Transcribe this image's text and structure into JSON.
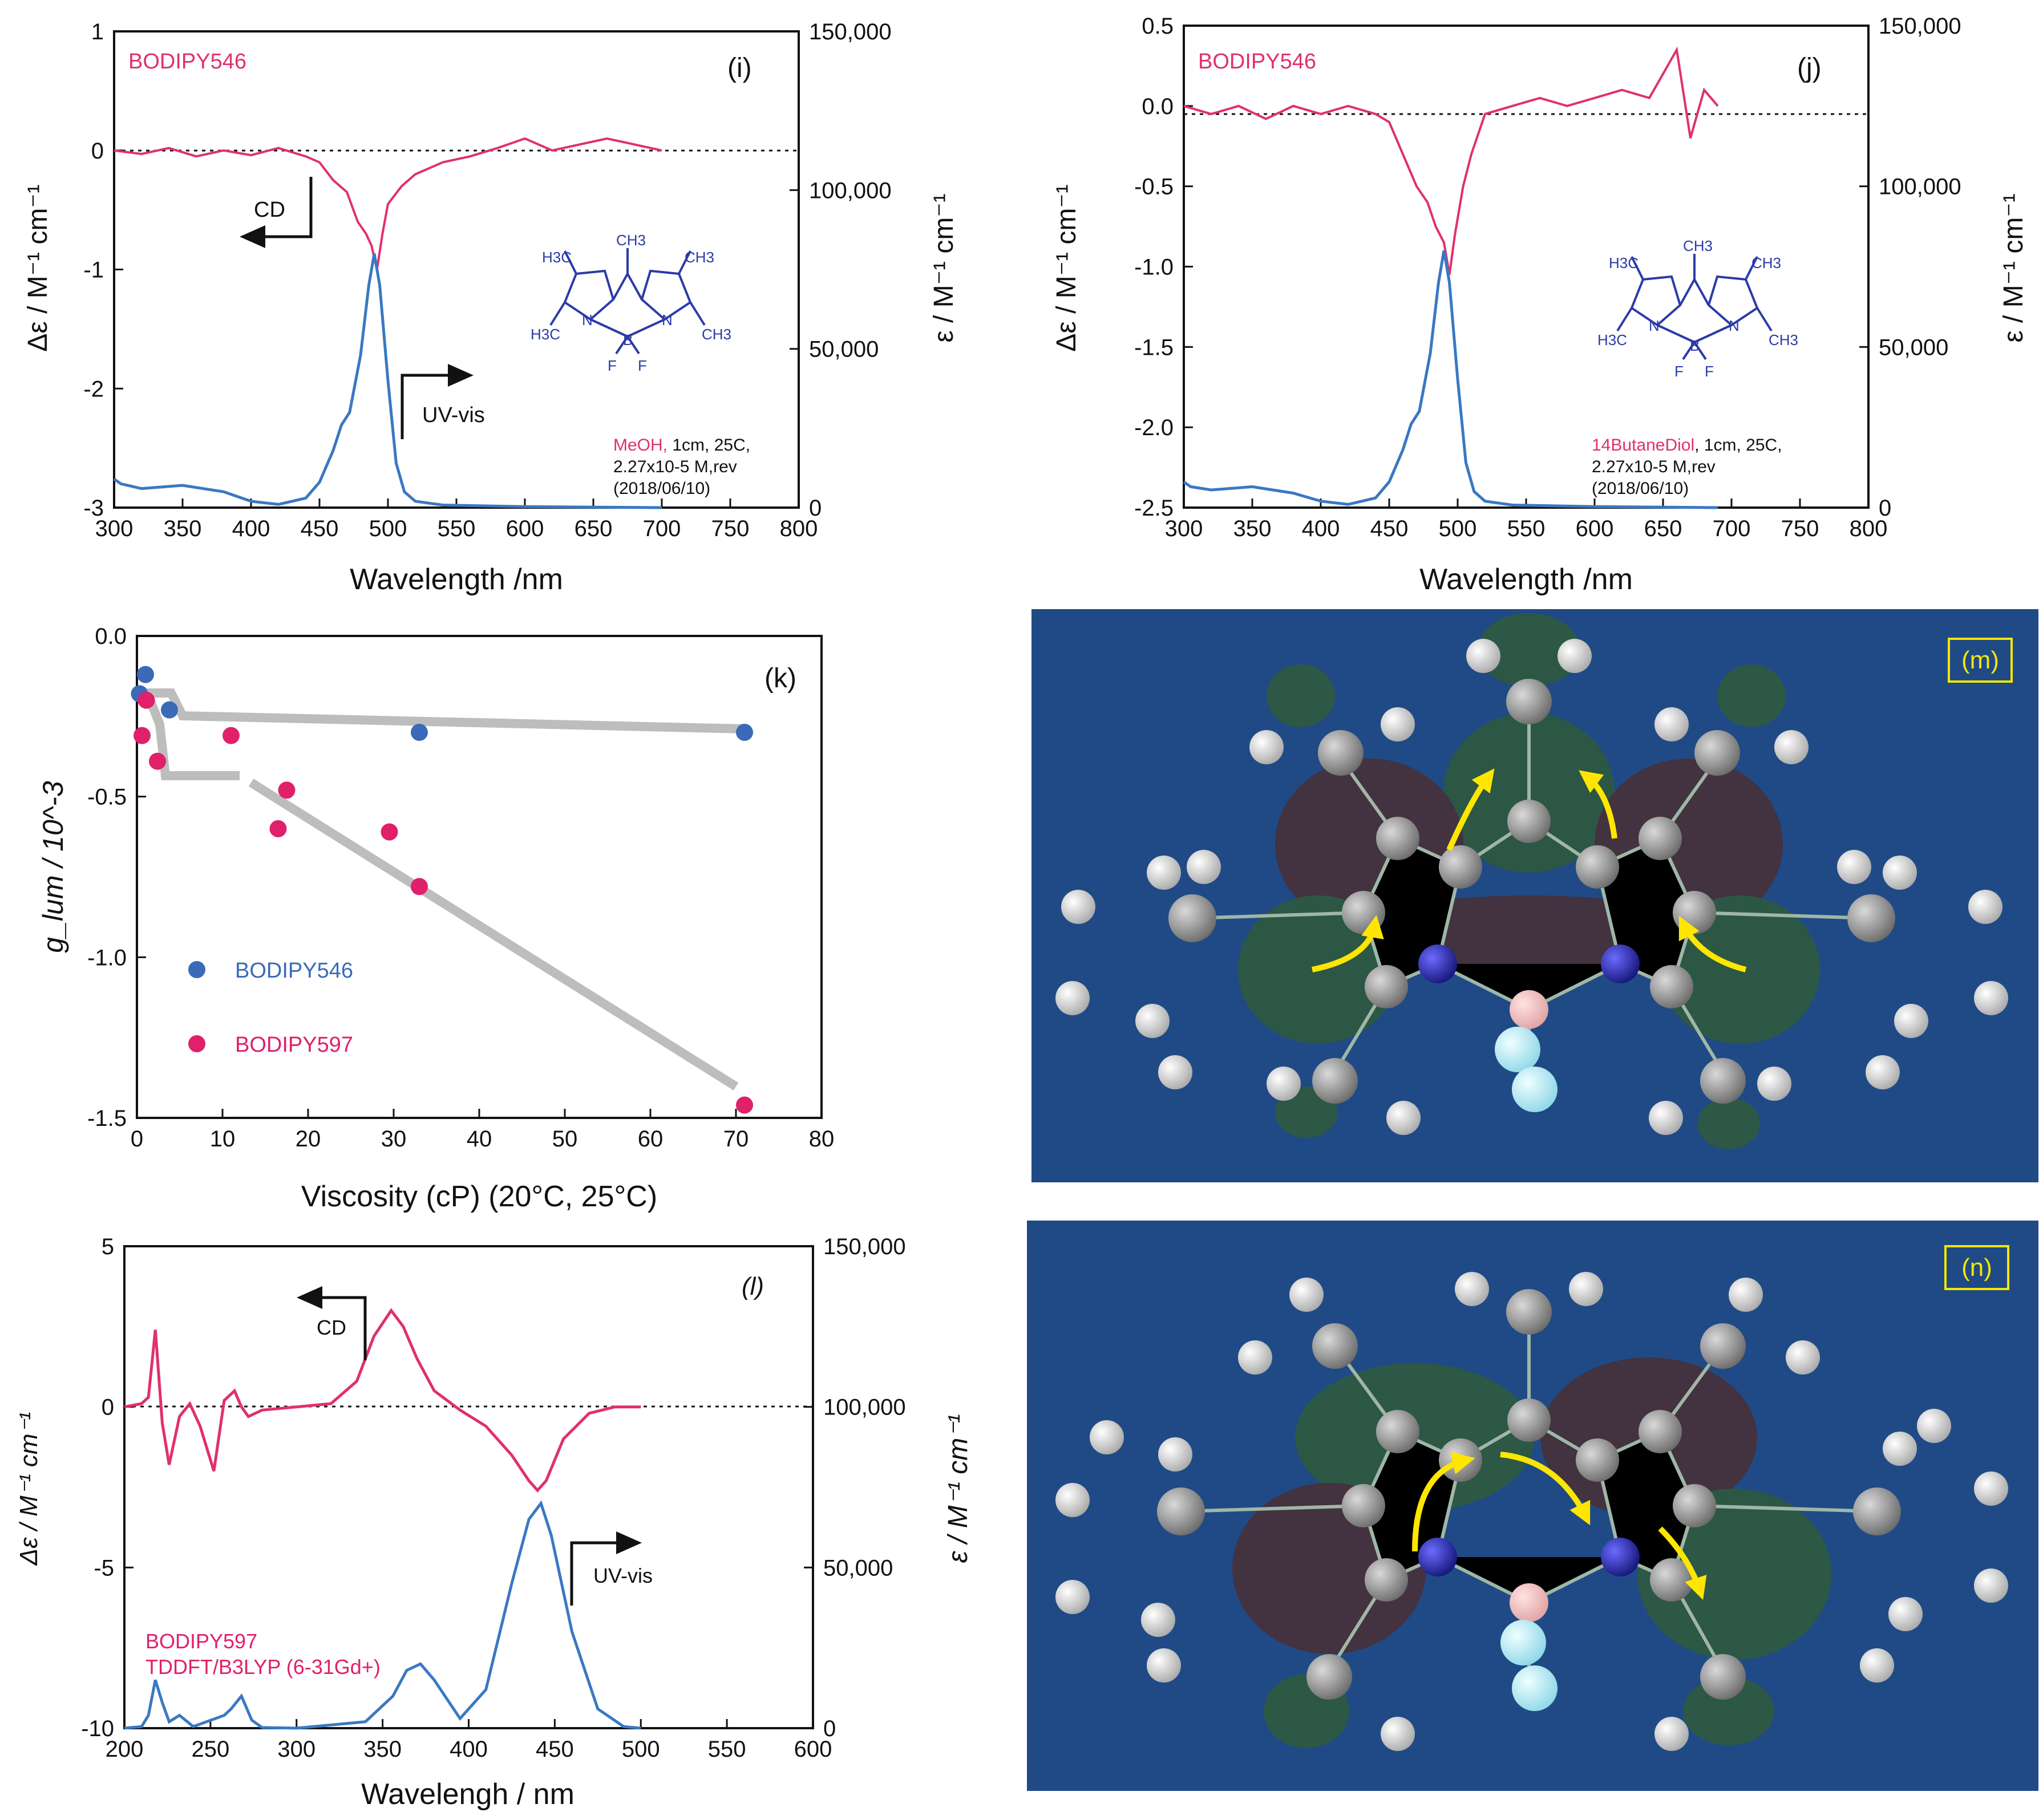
{
  "colors": {
    "cd": "#e0306e",
    "uv": "#3a78c2",
    "bodipy546": "#3a6ab8",
    "bodipy597": "#e0206a",
    "trend": "#bdbdbd",
    "orbital_bg": "#1f4a86",
    "label_box": "#f2e600"
  },
  "chart_data": [
    {
      "id": "i",
      "type": "line",
      "panel_label": "(i)",
      "sample": "BODIPY546",
      "xlabel": "Wavelength /nm",
      "ylabel_left": "Δε / M⁻¹ cm⁻¹",
      "ylabel_right": "ε / M⁻¹ cm⁻¹",
      "xlim": [
        300,
        800
      ],
      "ylim_left": [
        -3,
        1
      ],
      "ylim_right": [
        0,
        150000
      ],
      "xticks": [
        300,
        350,
        400,
        450,
        500,
        550,
        600,
        650,
        700,
        750,
        800
      ],
      "yticks_left": [
        -3,
        -2,
        -1,
        0,
        1
      ],
      "yticks_left_labels": [
        "-3",
        "-2",
        "-1",
        "0",
        "1"
      ],
      "yticks_right": [
        0,
        50000,
        100000,
        150000
      ],
      "yticks_right_labels": [
        "0",
        "50,000",
        "100,000",
        "150,000"
      ],
      "arrows": [
        "CD",
        "UV-vis"
      ],
      "condition_solvent": "MeOH,",
      "condition_lines": [
        "1cm, 25C,",
        "2.27x10-5 M,rev",
        "(2018/06/10)"
      ],
      "molecule_labels": [
        "H3C",
        "CH3",
        "CH3",
        "N",
        "B",
        "N",
        "H3C",
        "CH3",
        "F",
        "F"
      ],
      "series": [
        {
          "name": "CD",
          "axis": "left",
          "x": [
            300,
            320,
            340,
            360,
            380,
            400,
            420,
            440,
            450,
            460,
            470,
            478,
            484,
            488,
            492,
            496,
            500,
            510,
            520,
            540,
            560,
            580,
            600,
            620,
            640,
            660,
            680,
            700
          ],
          "y": [
            0,
            -0.03,
            0.02,
            -0.05,
            0,
            -0.04,
            0.02,
            -0.05,
            -0.1,
            -0.25,
            -0.35,
            -0.6,
            -0.7,
            -0.8,
            -1.0,
            -0.7,
            -0.45,
            -0.3,
            -0.2,
            -0.1,
            -0.05,
            0.02,
            0.1,
            0,
            0.05,
            0.1,
            0.05,
            0
          ]
        },
        {
          "name": "UV-vis",
          "axis": "right",
          "x": [
            300,
            305,
            320,
            350,
            380,
            400,
            420,
            440,
            450,
            460,
            466,
            472,
            480,
            486,
            490,
            494,
            500,
            506,
            512,
            520,
            540,
            600,
            700
          ],
          "y": [
            9000,
            7500,
            6000,
            7000,
            5000,
            2000,
            1000,
            3000,
            8000,
            18000,
            26000,
            30000,
            48000,
            70000,
            80000,
            70000,
            40000,
            14000,
            5000,
            2000,
            800,
            300,
            0
          ]
        }
      ]
    },
    {
      "id": "j",
      "type": "line",
      "panel_label": "(j)",
      "sample": "BODIPY546",
      "xlabel": "Wavelength /nm",
      "ylabel_left": "Δε / M⁻¹ cm⁻¹",
      "ylabel_right": "ε / M⁻¹ cm⁻¹",
      "xlim": [
        300,
        800
      ],
      "ylim_left": [
        -2.5,
        0.5
      ],
      "ylim_right": [
        0,
        150000
      ],
      "xticks": [
        300,
        350,
        400,
        450,
        500,
        550,
        600,
        650,
        700,
        750,
        800
      ],
      "yticks_left": [
        -2.5,
        -2.0,
        -1.5,
        -1.0,
        -0.5,
        0.0,
        0.5
      ],
      "yticks_left_labels": [
        "-2.5",
        "-2.0",
        "-1.5",
        "-1.0",
        "-0.5",
        "0.0",
        "0.5"
      ],
      "yticks_right": [
        0,
        50000,
        100000,
        150000
      ],
      "yticks_right_labels": [
        "0",
        "50,000",
        "100,000",
        "150,000"
      ],
      "condition_solvent": "14ButaneDiol",
      "condition_lines": [
        ", 1cm, 25C,",
        "2.27x10-5 M,rev",
        "(2018/06/10)"
      ],
      "molecule_labels": [
        "H3C",
        "CH3",
        "CH3",
        "N",
        "B",
        "N",
        "H3C",
        "CH3",
        "F",
        "F"
      ],
      "series": [
        {
          "name": "CD",
          "axis": "left",
          "x": [
            300,
            320,
            340,
            360,
            380,
            400,
            420,
            440,
            450,
            460,
            470,
            478,
            484,
            490,
            494,
            498,
            504,
            510,
            520,
            540,
            560,
            580,
            600,
            620,
            640,
            660,
            670,
            680,
            690
          ],
          "y": [
            0,
            -0.05,
            0,
            -0.08,
            0,
            -0.05,
            0,
            -0.05,
            -0.1,
            -0.3,
            -0.5,
            -0.6,
            -0.75,
            -0.85,
            -1.05,
            -0.8,
            -0.5,
            -0.3,
            -0.05,
            0,
            0.05,
            0,
            0.05,
            0.1,
            0.05,
            0.35,
            -0.2,
            0.1,
            0
          ]
        },
        {
          "name": "UV-vis",
          "axis": "right",
          "x": [
            300,
            305,
            320,
            350,
            380,
            400,
            420,
            440,
            450,
            460,
            466,
            472,
            480,
            486,
            490,
            494,
            500,
            506,
            512,
            520,
            540,
            600,
            690
          ],
          "y": [
            8000,
            6500,
            5500,
            6500,
            4500,
            2000,
            1000,
            3000,
            8000,
            18000,
            26000,
            30000,
            48000,
            70000,
            80000,
            70000,
            40000,
            14000,
            5000,
            2000,
            800,
            300,
            0
          ]
        }
      ]
    },
    {
      "id": "k",
      "type": "scatter",
      "panel_label": "(k)",
      "xlabel": "Viscosity (cP) (20°C, 25°C)",
      "ylabel": "g_lum / 10^-3",
      "xlim": [
        0,
        80
      ],
      "ylim": [
        -1.5,
        0.0
      ],
      "xticks": [
        0,
        10,
        20,
        30,
        40,
        50,
        60,
        70,
        80
      ],
      "yticks": [
        -1.5,
        -1.0,
        -0.5,
        0.0
      ],
      "yticks_labels": [
        "-1.5",
        "-1.0",
        "-0.5",
        "0.0"
      ],
      "series": [
        {
          "name": "BODIPY546",
          "x": [
            0.3,
            1.0,
            3.8,
            33.0,
            71.0
          ],
          "y": [
            -0.18,
            -0.12,
            -0.23,
            -0.3,
            -0.3
          ]
        },
        {
          "name": "BODIPY597",
          "x": [
            0.6,
            1.1,
            2.4,
            11.0,
            16.5,
            17.5,
            29.5,
            33.0,
            71.0
          ],
          "y": [
            -0.31,
            -0.2,
            -0.39,
            -0.31,
            -0.6,
            -0.48,
            -0.61,
            -0.78,
            -1.46
          ]
        }
      ]
    },
    {
      "id": "l",
      "type": "line",
      "panel_label": "(l)",
      "xlabel": "Wavelengh / nm",
      "ylabel_left": "Δε / M⁻¹ cm⁻¹",
      "ylabel_right": "ε / M⁻¹ cm⁻¹",
      "xlim": [
        200,
        600
      ],
      "ylim_left": [
        -10,
        5
      ],
      "ylim_right": [
        0,
        150000
      ],
      "xticks": [
        200,
        250,
        300,
        350,
        400,
        450,
        500,
        550,
        600
      ],
      "yticks_left": [
        -10,
        -5,
        0,
        5
      ],
      "yticks_left_labels": [
        "-10",
        "-5",
        "0",
        "5"
      ],
      "yticks_right": [
        0,
        50000,
        100000,
        150000
      ],
      "yticks_right_labels": [
        "0",
        "50,000",
        "100,000",
        "150,000"
      ],
      "arrows": [
        "CD",
        "UV-vis"
      ],
      "legend_lines": [
        "BODIPY597",
        "TDDFT/B3LYP (6-31Gd+)"
      ],
      "series": [
        {
          "name": "CD",
          "axis": "left",
          "x": [
            200,
            210,
            214,
            218,
            222,
            226,
            232,
            238,
            244,
            252,
            258,
            264,
            268,
            272,
            280,
            300,
            320,
            335,
            345,
            355,
            362,
            370,
            380,
            395,
            410,
            425,
            435,
            440,
            445,
            455,
            470,
            485,
            500
          ],
          "y": [
            0,
            0.1,
            0.3,
            2.4,
            -0.5,
            -1.8,
            -0.3,
            0.1,
            -0.6,
            -2.0,
            0.2,
            0.5,
            0.0,
            -0.3,
            -0.1,
            0.0,
            0.1,
            0.8,
            2.2,
            3.0,
            2.5,
            1.5,
            0.5,
            -0.1,
            -0.6,
            -1.5,
            -2.3,
            -2.6,
            -2.3,
            -1.0,
            -0.2,
            0.0,
            0.0
          ]
        },
        {
          "name": "UV-vis",
          "axis": "right",
          "x": [
            200,
            210,
            214,
            218,
            222,
            226,
            232,
            240,
            258,
            262,
            268,
            274,
            280,
            300,
            340,
            356,
            364,
            372,
            380,
            395,
            410,
            425,
            435,
            442,
            448,
            460,
            475,
            490,
            500
          ],
          "y": [
            0,
            500,
            4000,
            15000,
            8000,
            2000,
            4000,
            500,
            4000,
            6000,
            10000,
            2500,
            200,
            0,
            2000,
            10000,
            18000,
            20000,
            15000,
            3000,
            12000,
            45000,
            65000,
            70000,
            60000,
            30000,
            6000,
            500,
            0
          ]
        }
      ]
    }
  ],
  "orbital_panels": [
    {
      "id": "m",
      "label": "(m)"
    },
    {
      "id": "n",
      "label": "(n)"
    }
  ]
}
